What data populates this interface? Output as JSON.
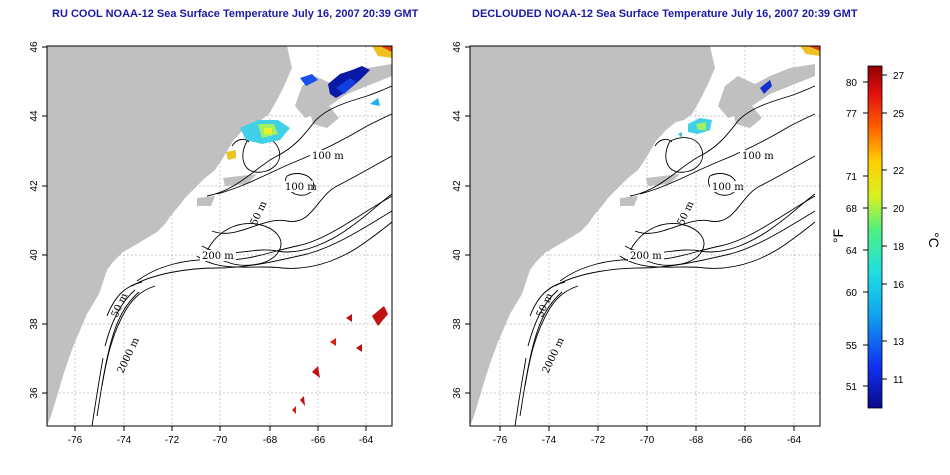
{
  "panels": [
    {
      "title": "RU COOL NOAA-12 Sea Surface Temperature July 16, 2007 20:39 GMT",
      "contour_labels": [
        "100 m",
        "100 m",
        "50 m",
        "200 m",
        "50 m",
        "2000 m"
      ]
    },
    {
      "title": "DECLOUDED NOAA-12 Sea Surface Temperature July 16, 2007 20:39 GMT",
      "contour_labels": [
        "100 m",
        "100 m",
        "50 m",
        "200 m",
        "50 m",
        "2000 m"
      ]
    }
  ],
  "axes": {
    "x_ticks": [
      "-76",
      "-74",
      "-72",
      "-70",
      "-68",
      "-66",
      "-64"
    ],
    "y_ticks": [
      "46",
      "44",
      "42",
      "40",
      "38",
      "36"
    ]
  },
  "colorbar": {
    "fahrenheit_label": "°F",
    "celsius_label": "°C",
    "fahrenheit_ticks": [
      "80",
      "77",
      "71",
      "68",
      "64",
      "60",
      "55",
      "51"
    ],
    "celsius_ticks": [
      "27",
      "25",
      "22",
      "20",
      "18",
      "16",
      "13",
      "11"
    ]
  },
  "colors": {
    "land": "#c0c0c0",
    "ocean": "#ffffff",
    "title": "#1a1aa6",
    "grid": "#b0b0b0"
  }
}
